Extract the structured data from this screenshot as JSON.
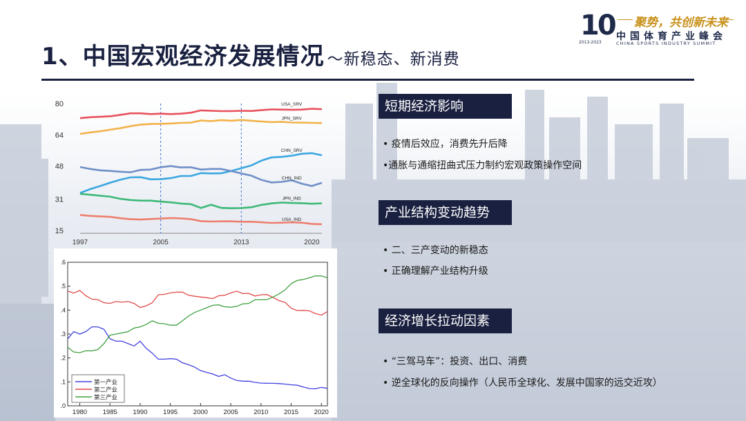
{
  "header": {
    "title": "1、中国宏观经济发展情况",
    "subtitle": "～新稳态、新消费"
  },
  "logo": {
    "number": "10",
    "years": "2013-2023",
    "slogan": "聚势，共创新未来",
    "name_cn": "中国体育产业峰会",
    "name_en": "CHINA SPORTS INDUSTRY SUMMIT"
  },
  "sections": [
    {
      "heading": "短期经济影响",
      "bullets": [
        "•  疫情后效应，消费先升后降",
        "•通胀与通缩扭曲式压力制约宏观政策操作空间"
      ]
    },
    {
      "heading": "产业结构变动趋势",
      "bullets": [
        "•  二、三产变动的新稳态",
        "•  正确理解产业结构升级"
      ]
    },
    {
      "heading": "经济增长拉动因素",
      "bullets": [
        "•  “三驾马车”：投资、出口、消费",
        "•    逆全球化的反向操作（人民币全球化、发展中国家的远交近攻）"
      ]
    }
  ],
  "chart_data": [
    {
      "type": "line",
      "x": [
        1997,
        1998,
        1999,
        2000,
        2001,
        2002,
        2003,
        2004,
        2005,
        2006,
        2007,
        2008,
        2009,
        2010,
        2011,
        2012,
        2013,
        2014,
        2015,
        2016,
        2017,
        2018,
        2019,
        2020,
        2021
      ],
      "xticks": [
        "1997",
        "2005",
        "2013",
        "2020"
      ],
      "yticks": [
        "80",
        "64",
        "48",
        "31",
        "15"
      ],
      "ylim": [
        15,
        80
      ],
      "vlines": [
        2005,
        2013
      ],
      "colors": {
        "red": "#e8505b",
        "orange": "#f2b24a",
        "blue": "#3aa6e0",
        "steel": "#6f8fc8",
        "green": "#3cb878",
        "salmon": "#ee7e6e"
      },
      "series": [
        {
          "name": "USA_SRV",
          "color": "red",
          "values": [
            72.5,
            73,
            73.2,
            73.5,
            74.2,
            75,
            75,
            74.6,
            74.8,
            74.6,
            74.8,
            75.3,
            76.5,
            76.3,
            76.1,
            76.1,
            76.3,
            76.2,
            76.6,
            77,
            76.9,
            76.8,
            76.9,
            77.3,
            77.1
          ]
        },
        {
          "name": "JPN_SRV",
          "color": "orange",
          "values": [
            64.5,
            65.2,
            65.8,
            66.6,
            67.4,
            68.4,
            69.2,
            69.5,
            69.6,
            69.8,
            70.1,
            70.2,
            71.3,
            71,
            71.5,
            71.2,
            71.6,
            71.2,
            70.8,
            70.5,
            70.6,
            70.3,
            70.2,
            70.1,
            70
          ]
        },
        {
          "name": "CHN_SRV",
          "color": "blue",
          "values": [
            34.2,
            36.2,
            37.8,
            39.5,
            41,
            42.2,
            42.3,
            41.2,
            41.3,
            41.8,
            42.9,
            42.9,
            44.4,
            44.2,
            44.3,
            45.5,
            46.9,
            48.3,
            50.8,
            52.4,
            52.7,
            53.3,
            54.3,
            54.6,
            53.5
          ]
        },
        {
          "name": "CHN_IND",
          "color": "steel",
          "values": [
            47.5,
            46.5,
            45.8,
            45.5,
            45.1,
            44.8,
            46,
            46.2,
            47.4,
            48,
            47.3,
            47.4,
            46.2,
            46.5,
            46.5,
            45.4,
            44.2,
            43.1,
            40.9,
            39.6,
            39.9,
            40.7,
            39,
            37.8,
            39.4
          ]
        },
        {
          "name": "JPN_IND",
          "color": "green",
          "values": [
            33.8,
            33.3,
            32.8,
            32.3,
            31.2,
            30.6,
            30.3,
            30.3,
            29.8,
            29.4,
            28.8,
            28.5,
            26.5,
            28.2,
            26.6,
            26.4,
            26.5,
            26.9,
            28.1,
            28.9,
            29.3,
            29.1,
            29,
            28.7,
            28.9
          ]
        },
        {
          "name": "USA_IND",
          "color": "salmon",
          "values": [
            23,
            22.5,
            22.2,
            22,
            21.3,
            20.8,
            20.6,
            20.9,
            21.1,
            21.4,
            21.2,
            20.8,
            19.8,
            19.6,
            19.7,
            19.7,
            19.5,
            19.5,
            19.2,
            18.9,
            19,
            19.2,
            19,
            18.4,
            18.2
          ]
        }
      ]
    },
    {
      "type": "line",
      "x": [
        1978,
        1979,
        1980,
        1981,
        1982,
        1983,
        1984,
        1985,
        1986,
        1987,
        1988,
        1989,
        1990,
        1991,
        1992,
        1993,
        1994,
        1995,
        1996,
        1997,
        1998,
        1999,
        2000,
        2001,
        2002,
        2003,
        2004,
        2005,
        2006,
        2007,
        2008,
        2009,
        2010,
        2011,
        2012,
        2013,
        2014,
        2015,
        2016,
        2017,
        2018,
        2019,
        2020,
        2021
      ],
      "xticks": [
        "1980",
        "1985",
        "1990",
        "1995",
        "2000",
        "2005",
        "2010",
        "2015",
        "2020"
      ],
      "yticks": [
        ".0",
        ".1",
        ".2",
        ".3",
        ".4",
        ".5",
        ".6"
      ],
      "ylim": [
        0,
        0.6
      ],
      "colors": {
        "primary": "#4040e0",
        "secondary": "#e04848",
        "tertiary": "#40a040"
      },
      "series": [
        {
          "name": "第一产业",
          "color": "primary",
          "values": [
            0.28,
            0.31,
            0.3,
            0.31,
            0.33,
            0.33,
            0.32,
            0.28,
            0.27,
            0.27,
            0.26,
            0.25,
            0.27,
            0.24,
            0.22,
            0.195,
            0.195,
            0.197,
            0.195,
            0.18,
            0.172,
            0.162,
            0.147,
            0.14,
            0.133,
            0.123,
            0.13,
            0.116,
            0.106,
            0.103,
            0.103,
            0.098,
            0.095,
            0.094,
            0.094,
            0.093,
            0.091,
            0.088,
            0.086,
            0.079,
            0.072,
            0.071,
            0.077,
            0.073
          ]
        },
        {
          "name": "第二产业",
          "color": "secondary",
          "values": [
            0.48,
            0.471,
            0.482,
            0.46,
            0.446,
            0.444,
            0.431,
            0.428,
            0.436,
            0.433,
            0.436,
            0.428,
            0.411,
            0.418,
            0.431,
            0.464,
            0.466,
            0.472,
            0.475,
            0.475,
            0.462,
            0.458,
            0.455,
            0.452,
            0.448,
            0.46,
            0.462,
            0.472,
            0.479,
            0.469,
            0.47,
            0.459,
            0.464,
            0.465,
            0.453,
            0.44,
            0.432,
            0.408,
            0.398,
            0.399,
            0.397,
            0.386,
            0.379,
            0.394
          ]
        },
        {
          "name": "第三产业",
          "color": "tertiary",
          "values": [
            0.245,
            0.225,
            0.222,
            0.23,
            0.23,
            0.235,
            0.26,
            0.295,
            0.3,
            0.305,
            0.31,
            0.325,
            0.33,
            0.34,
            0.355,
            0.345,
            0.343,
            0.337,
            0.337,
            0.355,
            0.375,
            0.39,
            0.4,
            0.41,
            0.42,
            0.422,
            0.414,
            0.412,
            0.416,
            0.426,
            0.428,
            0.443,
            0.443,
            0.444,
            0.455,
            0.468,
            0.485,
            0.51,
            0.524,
            0.528,
            0.535,
            0.543,
            0.543,
            0.535
          ]
        }
      ]
    }
  ]
}
